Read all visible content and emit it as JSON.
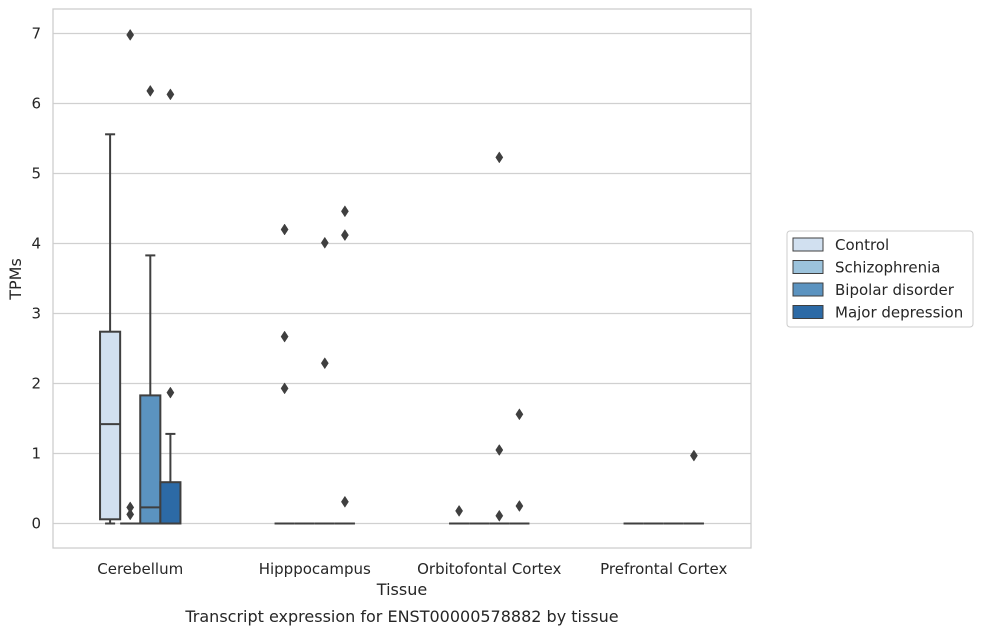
{
  "chart_data": {
    "type": "box",
    "xlabel": "Tissue",
    "ylabel": "TPMs",
    "caption": "Transcript expression for ENST00000578882 by tissue",
    "ylim": [
      -0.35,
      7.35
    ],
    "yticks": [
      0,
      1,
      2,
      3,
      4,
      5,
      6,
      7
    ],
    "grid": true,
    "legend_position": "right",
    "categories": [
      "Cerebellum",
      "Hipppocampus",
      "Orbitofontal Cortex",
      "Prefrontal Cortex"
    ],
    "series": [
      {
        "name": "Control",
        "color": "#d1e0f0",
        "boxes": [
          {
            "whislo": 0,
            "q1": 0.06,
            "med": 1.42,
            "q3": 2.74,
            "whishi": 5.56,
            "fliers": []
          },
          {
            "whislo": 0,
            "q1": 0,
            "med": 0,
            "q3": 0,
            "whishi": 0,
            "fliers": [
              1.93,
              2.67,
              4.2
            ]
          },
          {
            "whislo": 0,
            "q1": 0,
            "med": 0,
            "q3": 0,
            "whishi": 0,
            "fliers": [
              0.18
            ]
          },
          {
            "whislo": 0,
            "q1": 0,
            "med": 0,
            "q3": 0,
            "whishi": 0,
            "fliers": []
          }
        ]
      },
      {
        "name": "Schizophrenia",
        "color": "#9cc3dc",
        "boxes": [
          {
            "whislo": 0,
            "q1": 0,
            "med": 0,
            "q3": 0,
            "whishi": 0,
            "fliers": [
              0.13,
              0.23,
              6.98
            ]
          },
          {
            "whislo": 0,
            "q1": 0,
            "med": 0,
            "q3": 0,
            "whishi": 0,
            "fliers": []
          },
          {
            "whislo": 0,
            "q1": 0,
            "med": 0,
            "q3": 0,
            "whishi": 0,
            "fliers": []
          },
          {
            "whislo": 0,
            "q1": 0,
            "med": 0,
            "q3": 0,
            "whishi": 0,
            "fliers": []
          }
        ]
      },
      {
        "name": "Bipolar disorder",
        "color": "#5b93c0",
        "boxes": [
          {
            "whislo": 0,
            "q1": 0,
            "med": 0.23,
            "q3": 1.83,
            "whishi": 3.83,
            "fliers": [
              6.18
            ]
          },
          {
            "whislo": 0,
            "q1": 0,
            "med": 0,
            "q3": 0,
            "whishi": 0,
            "fliers": [
              2.29,
              4.01
            ]
          },
          {
            "whislo": 0,
            "q1": 0,
            "med": 0,
            "q3": 0,
            "whishi": 0,
            "fliers": [
              0.11,
              1.05,
              5.23
            ]
          },
          {
            "whislo": 0,
            "q1": 0,
            "med": 0,
            "q3": 0,
            "whishi": 0,
            "fliers": []
          }
        ]
      },
      {
        "name": "Major depression",
        "color": "#2c6aa6",
        "boxes": [
          {
            "whislo": 0,
            "q1": 0,
            "med": 0,
            "q3": 0.59,
            "whishi": 1.28,
            "fliers": [
              1.87,
              6.13
            ]
          },
          {
            "whislo": 0,
            "q1": 0,
            "med": 0,
            "q3": 0,
            "whishi": 0,
            "fliers": [
              0.31,
              4.12,
              4.46
            ]
          },
          {
            "whislo": 0,
            "q1": 0,
            "med": 0,
            "q3": 0,
            "whishi": 0,
            "fliers": [
              0.25,
              1.56
            ]
          },
          {
            "whislo": 0,
            "q1": 0,
            "med": 0,
            "q3": 0,
            "whishi": 0,
            "fliers": [
              0.97
            ]
          }
        ]
      }
    ]
  }
}
